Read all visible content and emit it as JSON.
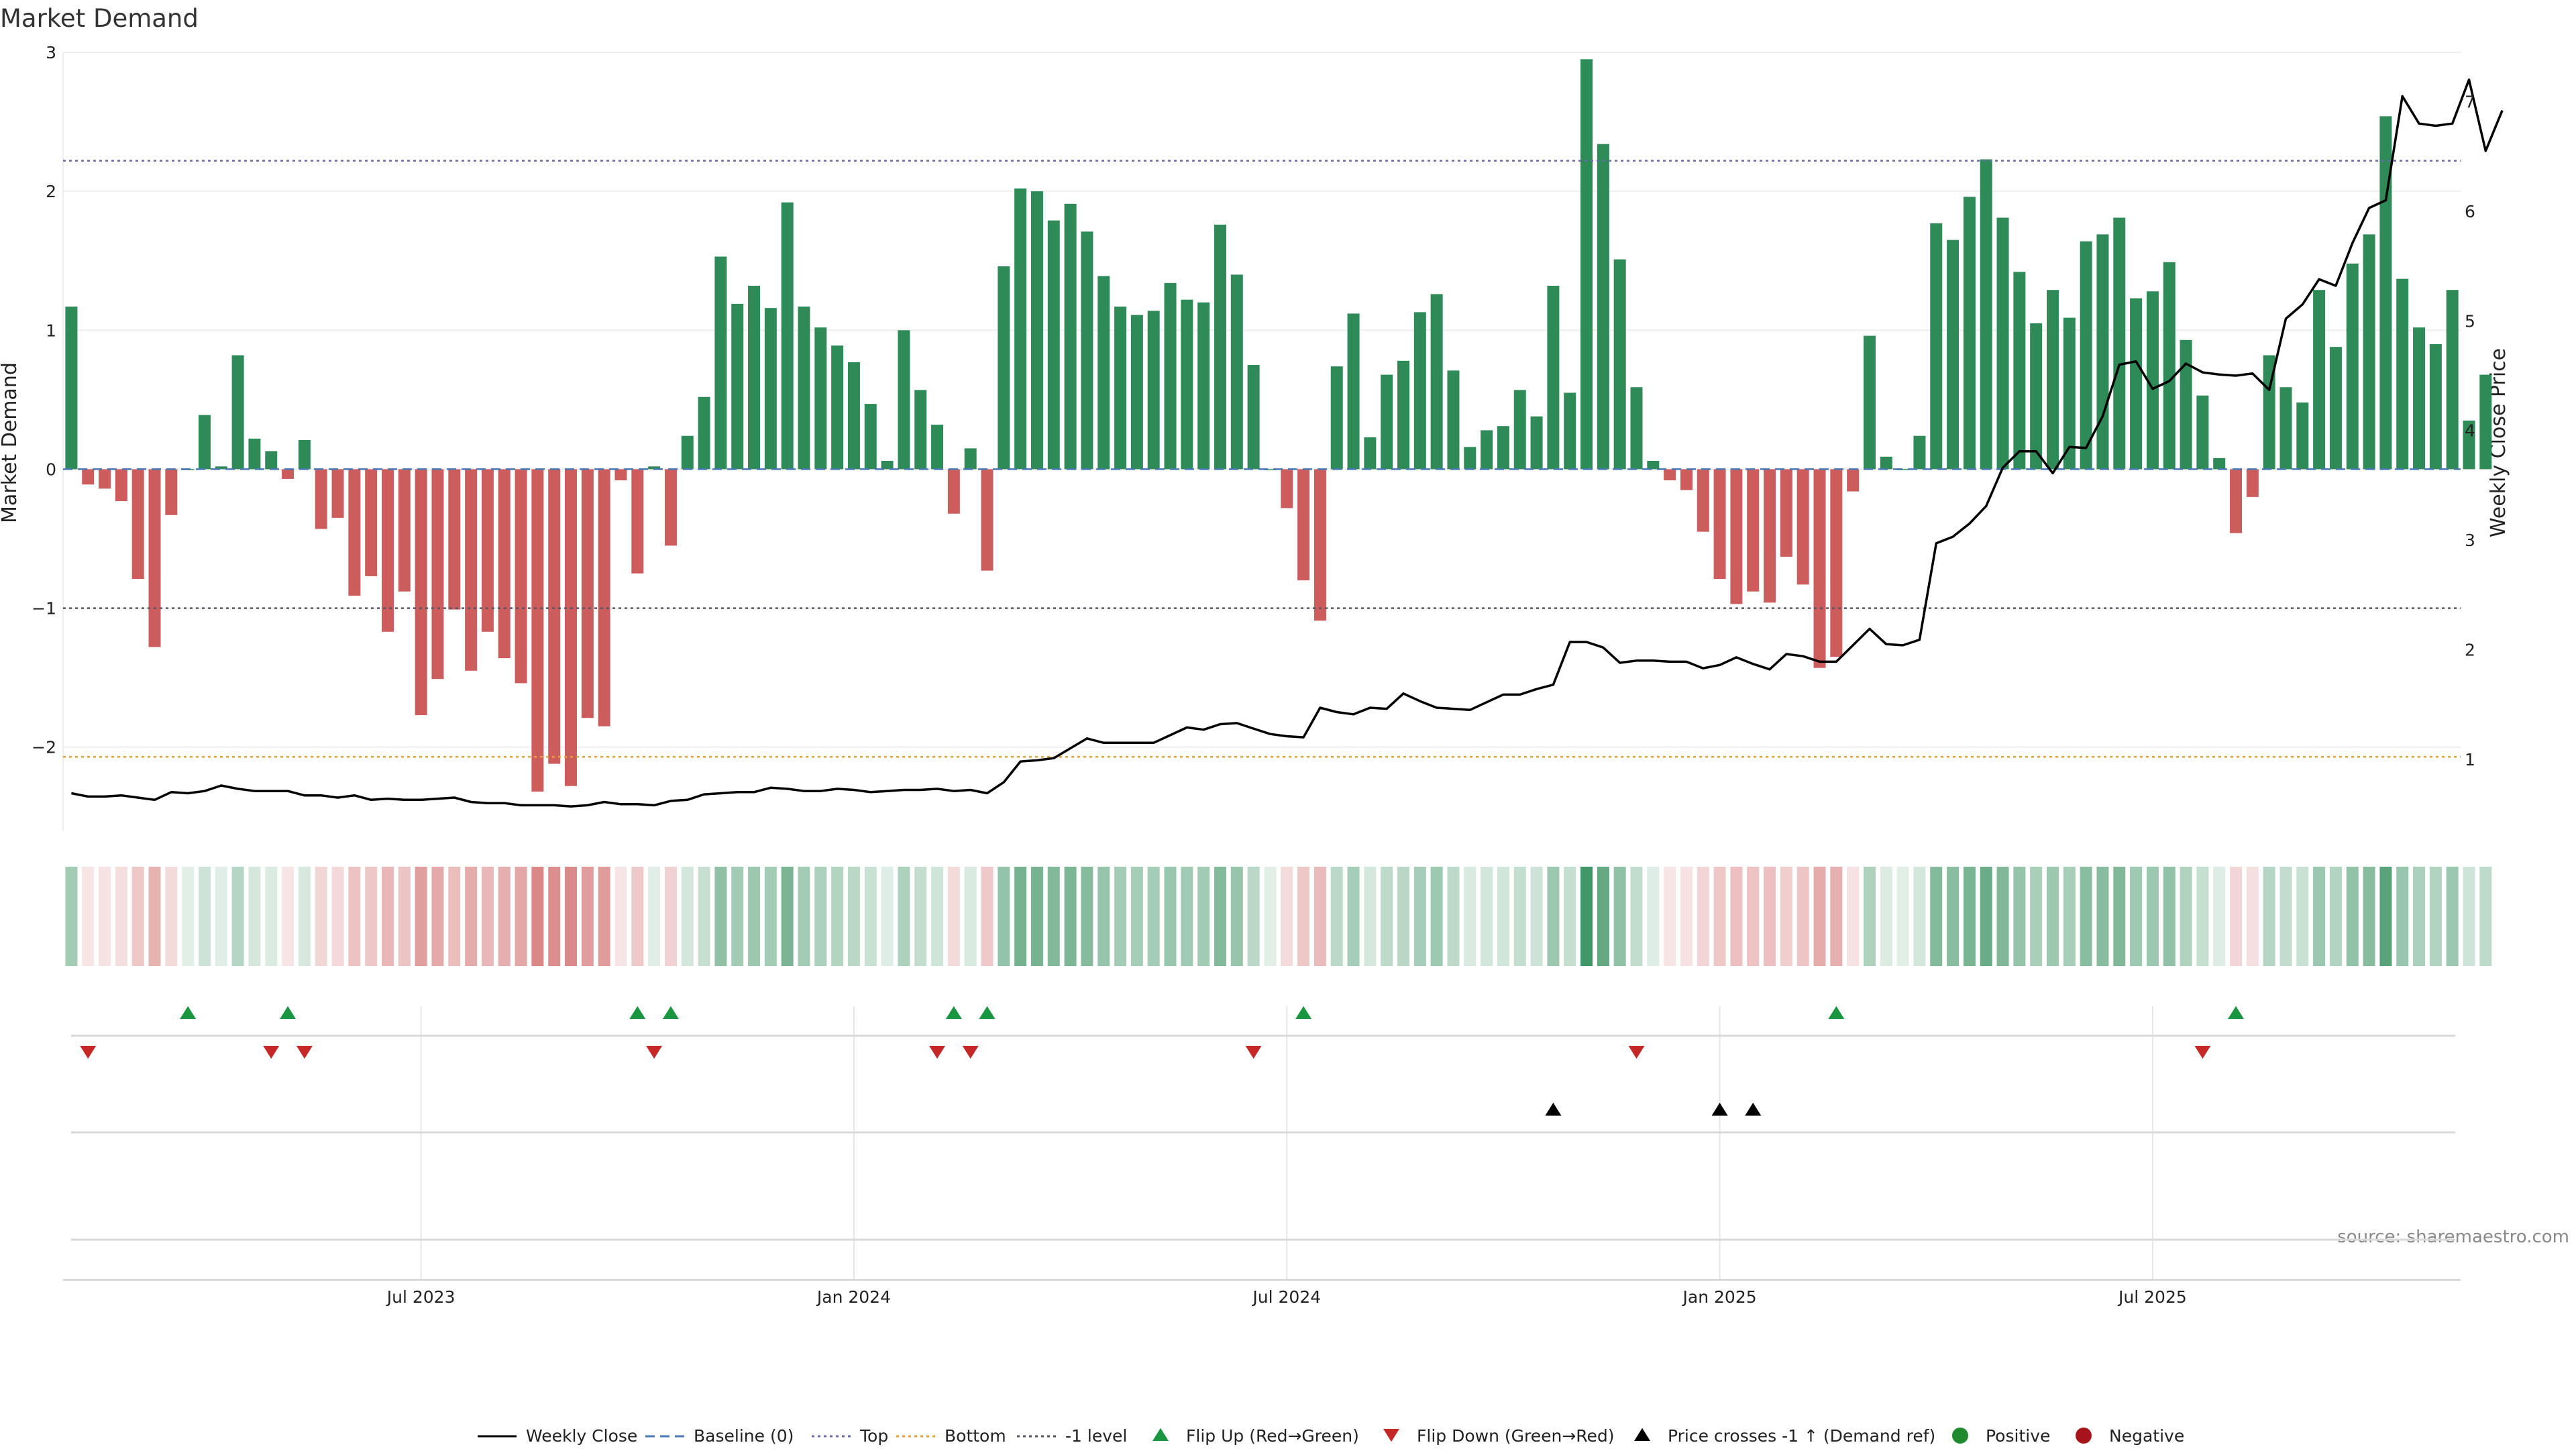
{
  "chart_data": {
    "type": "bar",
    "title": "Market Demand",
    "ylabel_left": "Market Demand",
    "ylabel_right": "Weekly Close Price",
    "source": "source: sharemaestro.com",
    "left_ylim": [
      -2.6,
      3.0
    ],
    "left_yticks": [
      3,
      2,
      1,
      0,
      -1,
      -2
    ],
    "right_ylim": [
      0.35,
      7.45
    ],
    "right_yticks": [
      1,
      2,
      3,
      4,
      5,
      6,
      7
    ],
    "levels": {
      "top": 2.22,
      "bottom": -2.07,
      "minus_one": -1,
      "baseline": 0
    },
    "colors": {
      "positive": "#2e8b57",
      "negative": "#cd5c5c",
      "close": "#000000",
      "flip_up": "#1a9641",
      "flip_down": "#c62828",
      "cross": "#000000",
      "top": "#6a6aa8",
      "bottom": "#e8a13a",
      "minus_one": "#555566",
      "baseline": "#4a78b4"
    },
    "x_ticks": [
      {
        "index": 21,
        "label": "Jul 2023"
      },
      {
        "index": 47,
        "label": "Jan 2024"
      },
      {
        "index": 73,
        "label": "Jul 2024"
      },
      {
        "index": 99,
        "label": "Jan 2025"
      },
      {
        "index": 125,
        "label": "Jul 2025"
      }
    ],
    "demand": [
      1.17,
      -0.11,
      -0.14,
      -0.23,
      -0.79,
      -1.28,
      -0.33,
      0.0,
      0.39,
      0.02,
      0.82,
      0.22,
      0.13,
      -0.07,
      0.21,
      -0.43,
      -0.35,
      -0.91,
      -0.77,
      -1.17,
      -0.88,
      -1.77,
      -1.51,
      -1.01,
      -1.45,
      -1.17,
      -1.36,
      -1.54,
      -2.32,
      -2.12,
      -2.28,
      -1.79,
      -1.85,
      -0.08,
      -0.75,
      0.02,
      -0.55,
      0.24,
      0.52,
      1.53,
      1.19,
      1.32,
      1.16,
      1.92,
      1.17,
      1.02,
      0.89,
      0.77,
      0.47,
      0.06,
      1.0,
      0.57,
      0.32,
      -0.32,
      0.15,
      -0.73,
      1.46,
      2.02,
      2.0,
      1.79,
      1.91,
      1.71,
      1.39,
      1.17,
      1.11,
      1.14,
      1.34,
      1.22,
      1.2,
      1.76,
      1.4,
      0.75,
      0.0,
      -0.28,
      -0.8,
      -1.09,
      0.74,
      1.12,
      0.23,
      0.68,
      0.78,
      1.13,
      1.26,
      0.71,
      0.16,
      0.28,
      0.31,
      0.57,
      0.38,
      1.32,
      0.55,
      2.95,
      2.34,
      1.51,
      0.59,
      0.06,
      -0.08,
      -0.15,
      -0.45,
      -0.79,
      -0.97,
      -0.88,
      -0.96,
      -0.63,
      -0.83,
      -1.43,
      -1.35,
      -0.16,
      0.96,
      0.09,
      0.0,
      0.24,
      1.77,
      1.65,
      1.96,
      2.23,
      1.81,
      1.42,
      1.05,
      1.29,
      1.09,
      1.64,
      1.69,
      1.81,
      1.23,
      1.28,
      1.49,
      0.93,
      0.53,
      0.08,
      -0.46,
      -0.2,
      0.82,
      0.59,
      0.48,
      1.29,
      0.88,
      1.48,
      1.69,
      2.54,
      1.37,
      1.02,
      0.9,
      1.29,
      0.35,
      0.68
    ],
    "close": [
      0.69,
      0.66,
      0.66,
      0.67,
      0.65,
      0.63,
      0.7,
      0.69,
      0.71,
      0.76,
      0.73,
      0.71,
      0.71,
      0.71,
      0.67,
      0.67,
      0.65,
      0.67,
      0.63,
      0.64,
      0.63,
      0.63,
      0.64,
      0.65,
      0.61,
      0.6,
      0.6,
      0.58,
      0.58,
      0.58,
      0.57,
      0.58,
      0.61,
      0.59,
      0.59,
      0.58,
      0.62,
      0.63,
      0.68,
      0.69,
      0.7,
      0.7,
      0.74,
      0.73,
      0.71,
      0.71,
      0.73,
      0.72,
      0.7,
      0.71,
      0.72,
      0.72,
      0.73,
      0.71,
      0.72,
      0.69,
      0.79,
      0.98,
      0.99,
      1.01,
      1.1,
      1.19,
      1.15,
      1.15,
      1.15,
      1.15,
      1.22,
      1.29,
      1.27,
      1.32,
      1.33,
      1.28,
      1.23,
      1.21,
      1.2,
      1.47,
      1.43,
      1.41,
      1.47,
      1.46,
      1.6,
      1.53,
      1.47,
      1.46,
      1.45,
      1.52,
      1.59,
      1.59,
      1.64,
      1.68,
      2.07,
      2.07,
      2.02,
      1.88,
      1.9,
      1.9,
      1.89,
      1.89,
      1.83,
      1.86,
      1.93,
      1.87,
      1.82,
      1.96,
      1.94,
      1.89,
      1.89,
      2.04,
      2.19,
      2.05,
      2.04,
      2.09,
      2.97,
      3.03,
      3.15,
      3.31,
      3.66,
      3.81,
      3.81,
      3.61,
      3.85,
      3.84,
      4.13,
      4.6,
      4.63,
      4.38,
      4.45,
      4.61,
      4.53,
      4.51,
      4.5,
      4.52,
      4.37,
      5.02,
      5.15,
      5.38,
      5.32,
      5.71,
      6.03,
      6.1,
      7.05,
      6.8,
      6.78,
      6.8,
      7.2,
      6.55,
      6.92
    ],
    "flip_up": [
      7,
      13,
      34,
      36,
      53,
      55,
      74,
      106,
      130
    ],
    "flip_down": [
      1,
      12,
      14,
      35,
      52,
      54,
      71,
      94,
      128
    ],
    "cross_up": [
      89,
      99,
      101
    ],
    "legend": [
      {
        "label": "Weekly Close",
        "kind": "line"
      },
      {
        "label": "Baseline (0)",
        "kind": "dash"
      },
      {
        "label": "Top",
        "kind": "dot"
      },
      {
        "label": "Bottom",
        "kind": "dot-orange"
      },
      {
        "label": "-1 level",
        "kind": "dot-dark"
      },
      {
        "label": "Flip Up (Red→Green)",
        "kind": "tri-up"
      },
      {
        "label": "Flip Down (Green→Red)",
        "kind": "tri-down"
      },
      {
        "label": "Price crosses -1 ↑ (Demand ref)",
        "kind": "tri-black"
      },
      {
        "label": "Positive",
        "kind": "dot-green"
      },
      {
        "label": "Negative",
        "kind": "dot-red"
      }
    ]
  }
}
